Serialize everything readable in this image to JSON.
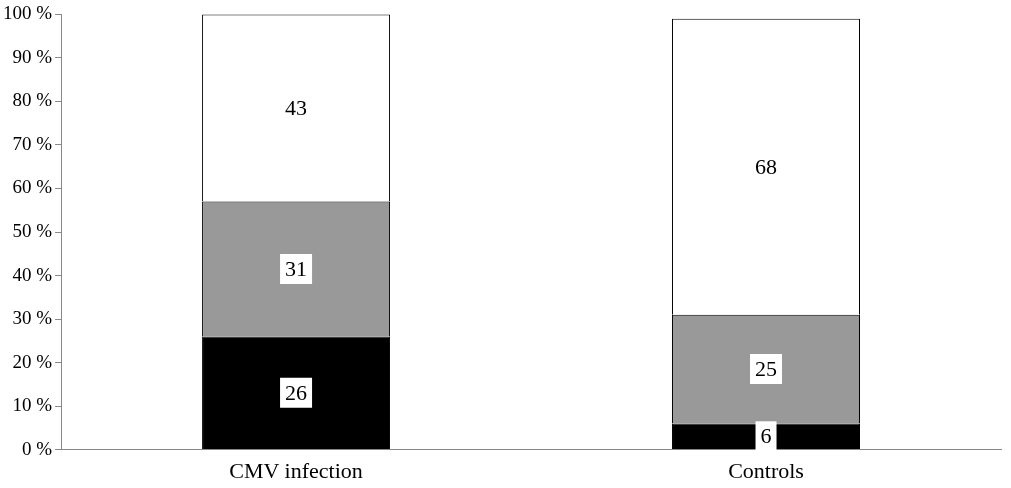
{
  "chart_data": {
    "type": "bar",
    "stacked": true,
    "categories": [
      "CMV infection",
      "Controls"
    ],
    "series": [
      {
        "color": "#000000",
        "values": [
          26,
          6
        ]
      },
      {
        "color": "#999999",
        "values": [
          31,
          25
        ]
      },
      {
        "color": "#ffffff",
        "values": [
          43,
          68
        ]
      }
    ],
    "ylim": [
      0,
      100
    ],
    "yticks": [
      {
        "value": 0,
        "label": "0 %"
      },
      {
        "value": 10,
        "label": "10 %"
      },
      {
        "value": 20,
        "label": "20 %"
      },
      {
        "value": 30,
        "label": "30 %"
      },
      {
        "value": 40,
        "label": "40 %"
      },
      {
        "value": 50,
        "label": "50 %"
      },
      {
        "value": 60,
        "label": "60 %"
      },
      {
        "value": 70,
        "label": "70 %"
      },
      {
        "value": 80,
        "label": "80 %"
      },
      {
        "value": 90,
        "label": "90 %"
      },
      {
        "value": 100,
        "label": "100 %"
      }
    ],
    "data_labels": true,
    "grid": false,
    "legend": false
  }
}
